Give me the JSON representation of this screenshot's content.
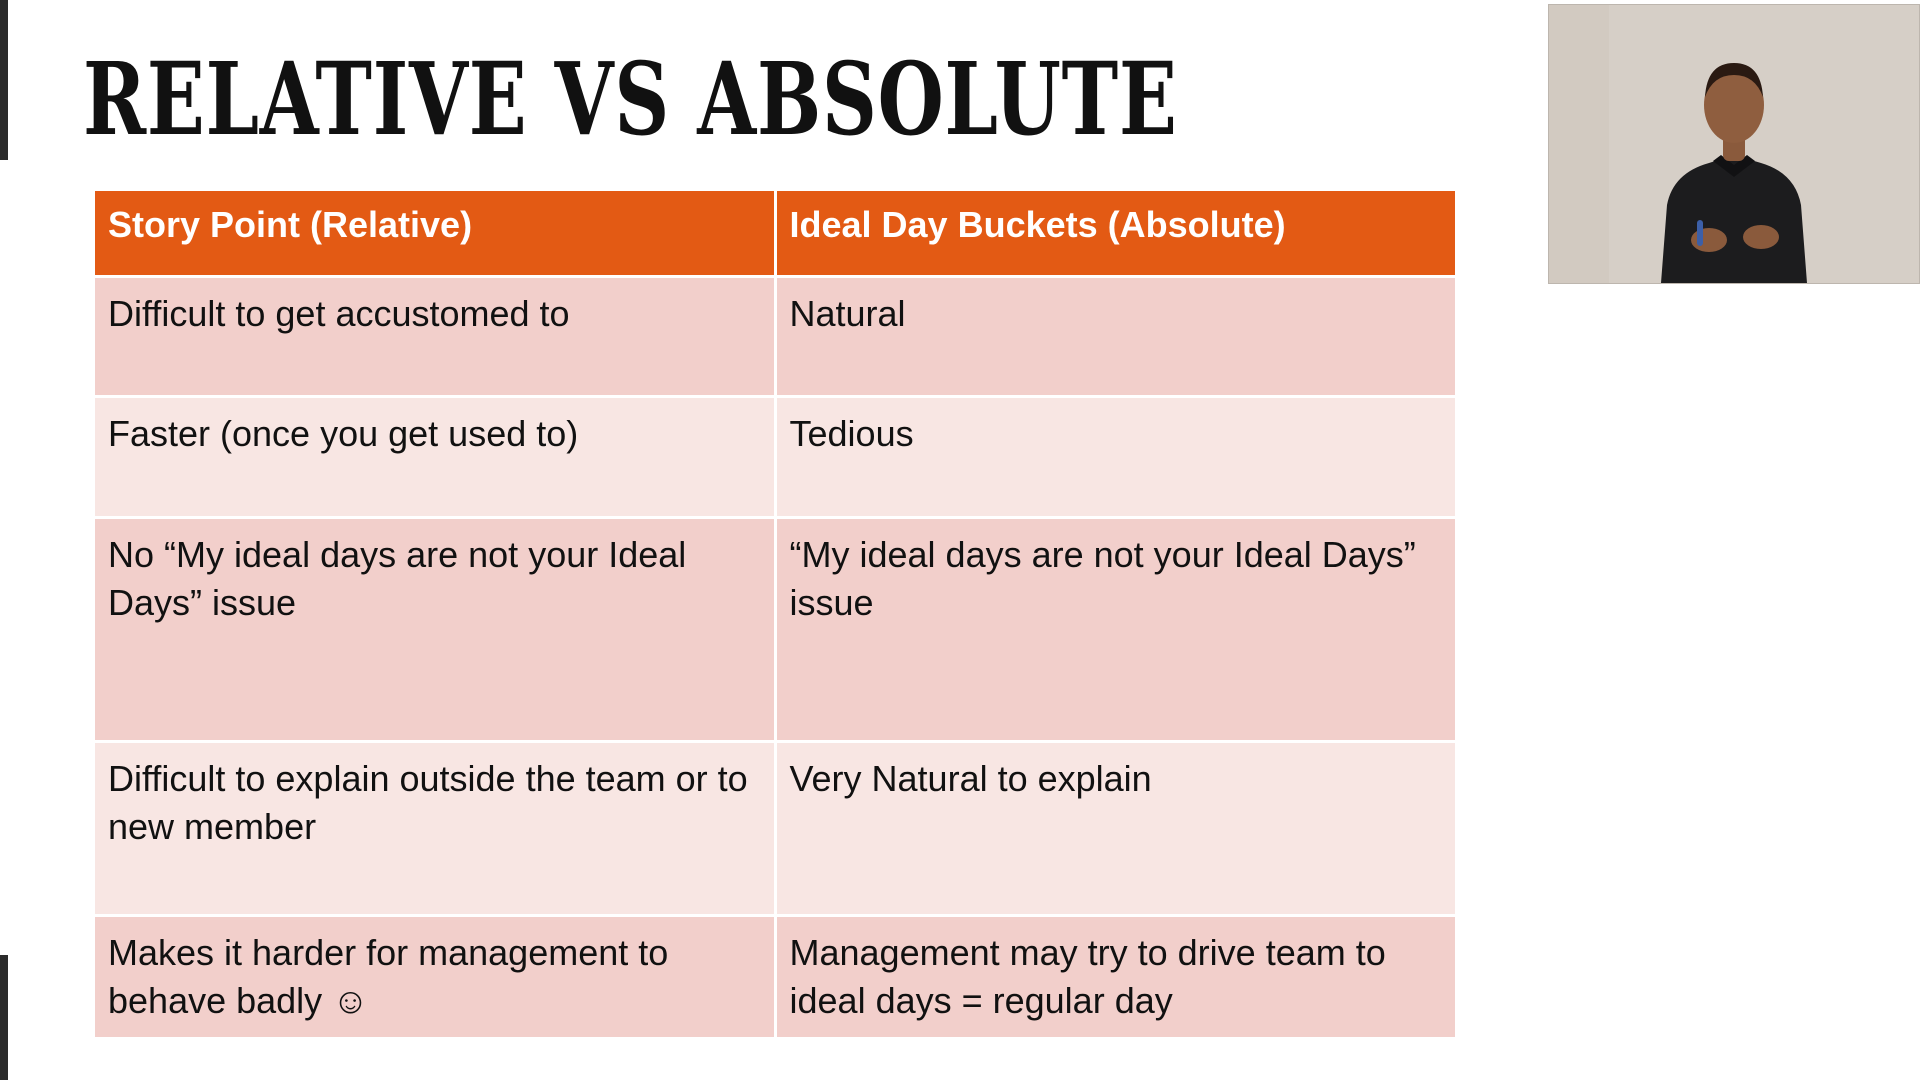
{
  "slide": {
    "title": "RELATIVE VS ABSOLUTE"
  },
  "table": {
    "headers": [
      "Story Point (Relative)",
      "Ideal Day Buckets (Absolute)"
    ],
    "rows": [
      [
        "Difficult to get accustomed to",
        "Natural"
      ],
      [
        "Faster (once you get used to)",
        "Tedious"
      ],
      [
        "No “My ideal days are not your Ideal Days” issue",
        "“My ideal days are not your Ideal Days” issue"
      ],
      [
        "Difficult to explain outside the team or to new member",
        "Very Natural to explain"
      ],
      [
        "Makes it harder for management to behave badly ☺",
        "Management may try to drive team to ideal days = regular day"
      ]
    ]
  },
  "colors": {
    "header_bg": "#e35a14",
    "row_odd_bg": "#f2cfcb",
    "row_even_bg": "#f8e6e3"
  },
  "webcam": {
    "icon": "presenter-video-icon"
  }
}
